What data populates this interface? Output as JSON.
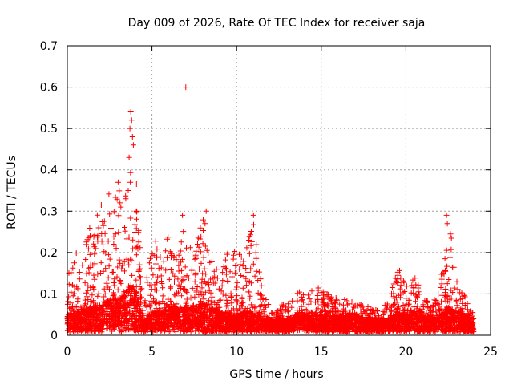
{
  "chart_data": {
    "type": "scatter",
    "title": "Day 009 of 2026, Rate Of TEC Index for receiver saja",
    "xlabel": "GPS time / hours",
    "ylabel": "ROTI / TECUs",
    "xlim": [
      0,
      25
    ],
    "ylim": [
      0,
      0.7
    ],
    "xticks": [
      "0",
      "5",
      "10",
      "15",
      "20",
      "25"
    ],
    "yticks": [
      "0",
      "0.1",
      "0.2",
      "0.3",
      "0.4",
      "0.5",
      "0.6",
      "0.7"
    ],
    "grid": true,
    "marker": "+",
    "color": "#ff0000",
    "series": [
      {
        "name": "ROTI",
        "envelope": [
          [
            0.0,
            0.04,
            0.14
          ],
          [
            0.5,
            0.05,
            0.2
          ],
          [
            1.0,
            0.06,
            0.25
          ],
          [
            1.5,
            0.06,
            0.27
          ],
          [
            2.0,
            0.07,
            0.32
          ],
          [
            2.5,
            0.08,
            0.36
          ],
          [
            3.0,
            0.08,
            0.37
          ],
          [
            3.5,
            0.1,
            0.35
          ],
          [
            3.8,
            0.12,
            0.54
          ],
          [
            4.2,
            0.08,
            0.3
          ],
          [
            4.5,
            0.02,
            0.05
          ],
          [
            5.0,
            0.05,
            0.28
          ],
          [
            5.5,
            0.05,
            0.22
          ],
          [
            6.0,
            0.06,
            0.24
          ],
          [
            6.5,
            0.06,
            0.2
          ],
          [
            7.0,
            0.06,
            0.3
          ],
          [
            7.5,
            0.06,
            0.2
          ],
          [
            8.0,
            0.07,
            0.3
          ],
          [
            8.5,
            0.06,
            0.2
          ],
          [
            9.0,
            0.05,
            0.15
          ],
          [
            9.5,
            0.04,
            0.22
          ],
          [
            10.0,
            0.04,
            0.2
          ],
          [
            10.5,
            0.05,
            0.2
          ],
          [
            11.0,
            0.05,
            0.29
          ],
          [
            11.5,
            0.03,
            0.12
          ],
          [
            12.0,
            0.03,
            0.06
          ],
          [
            13.0,
            0.03,
            0.08
          ],
          [
            13.5,
            0.04,
            0.11
          ],
          [
            14.0,
            0.04,
            0.1
          ],
          [
            15.0,
            0.04,
            0.12
          ],
          [
            16.0,
            0.04,
            0.09
          ],
          [
            17.0,
            0.04,
            0.08
          ],
          [
            18.0,
            0.03,
            0.07
          ],
          [
            18.5,
            0.03,
            0.06
          ],
          [
            19.0,
            0.03,
            0.09
          ],
          [
            19.5,
            0.05,
            0.17
          ],
          [
            20.0,
            0.04,
            0.12
          ],
          [
            20.5,
            0.05,
            0.16
          ],
          [
            21.0,
            0.04,
            0.1
          ],
          [
            21.5,
            0.03,
            0.07
          ],
          [
            22.0,
            0.04,
            0.12
          ],
          [
            22.5,
            0.06,
            0.29
          ],
          [
            23.0,
            0.05,
            0.15
          ],
          [
            23.5,
            0.04,
            0.1
          ],
          [
            24.0,
            0.02,
            0.05
          ]
        ],
        "outliers": [
          [
            7.0,
            0.6
          ],
          [
            3.75,
            0.54
          ],
          [
            3.7,
            0.5
          ],
          [
            3.8,
            0.52
          ],
          [
            3.85,
            0.48
          ],
          [
            3.9,
            0.46
          ],
          [
            3.65,
            0.43
          ],
          [
            3.72,
            0.37
          ],
          [
            3.6,
            0.35
          ],
          [
            22.4,
            0.29
          ],
          [
            22.45,
            0.27
          ],
          [
            8.2,
            0.3
          ],
          [
            11.0,
            0.29
          ],
          [
            3.0,
            0.37
          ],
          [
            6.8,
            0.29
          ]
        ]
      }
    ]
  }
}
